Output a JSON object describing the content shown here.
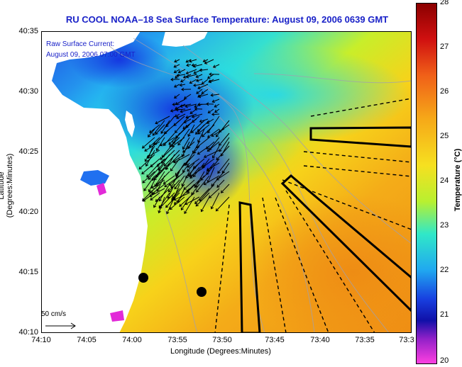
{
  "title": "RU COOL  NOAA–18  Sea Surface Temperature:  August 09, 2006 0639 GMT",
  "legend": {
    "line1": "Raw Surface Current:",
    "line2": "August 09, 2006 07:00 GMT"
  },
  "scale_label": "50 cm/s",
  "axes": {
    "xlabel": "Longitude (Degrees:Minutes)",
    "ylabel": "Latitude (Degrees:Minutes)",
    "xticks": [
      "74:10",
      "74:05",
      "74:00",
      "73:55",
      "73:50",
      "73:45",
      "73:40",
      "73:35",
      "73:3"
    ],
    "yticks": [
      "40:35",
      "40:30",
      "40:25",
      "40:20",
      "40:15",
      "40:10"
    ]
  },
  "colorbar": {
    "label": "Temperature (°C)",
    "ticks": [
      "28",
      "27",
      "26",
      "25",
      "24",
      "23",
      "22",
      "21",
      "20"
    ],
    "range": [
      20,
      28
    ]
  },
  "colors": {
    "title": "#1a22c8",
    "land": "#ffffff",
    "warm": "#f0a018",
    "cool": "#2060e8"
  },
  "chart_data": {
    "type": "heatmap",
    "variable": "Sea Surface Temperature",
    "unit": "°C",
    "xlim": [
      "74:10",
      "73:30"
    ],
    "ylim": [
      "40:10",
      "40:35"
    ]
  }
}
